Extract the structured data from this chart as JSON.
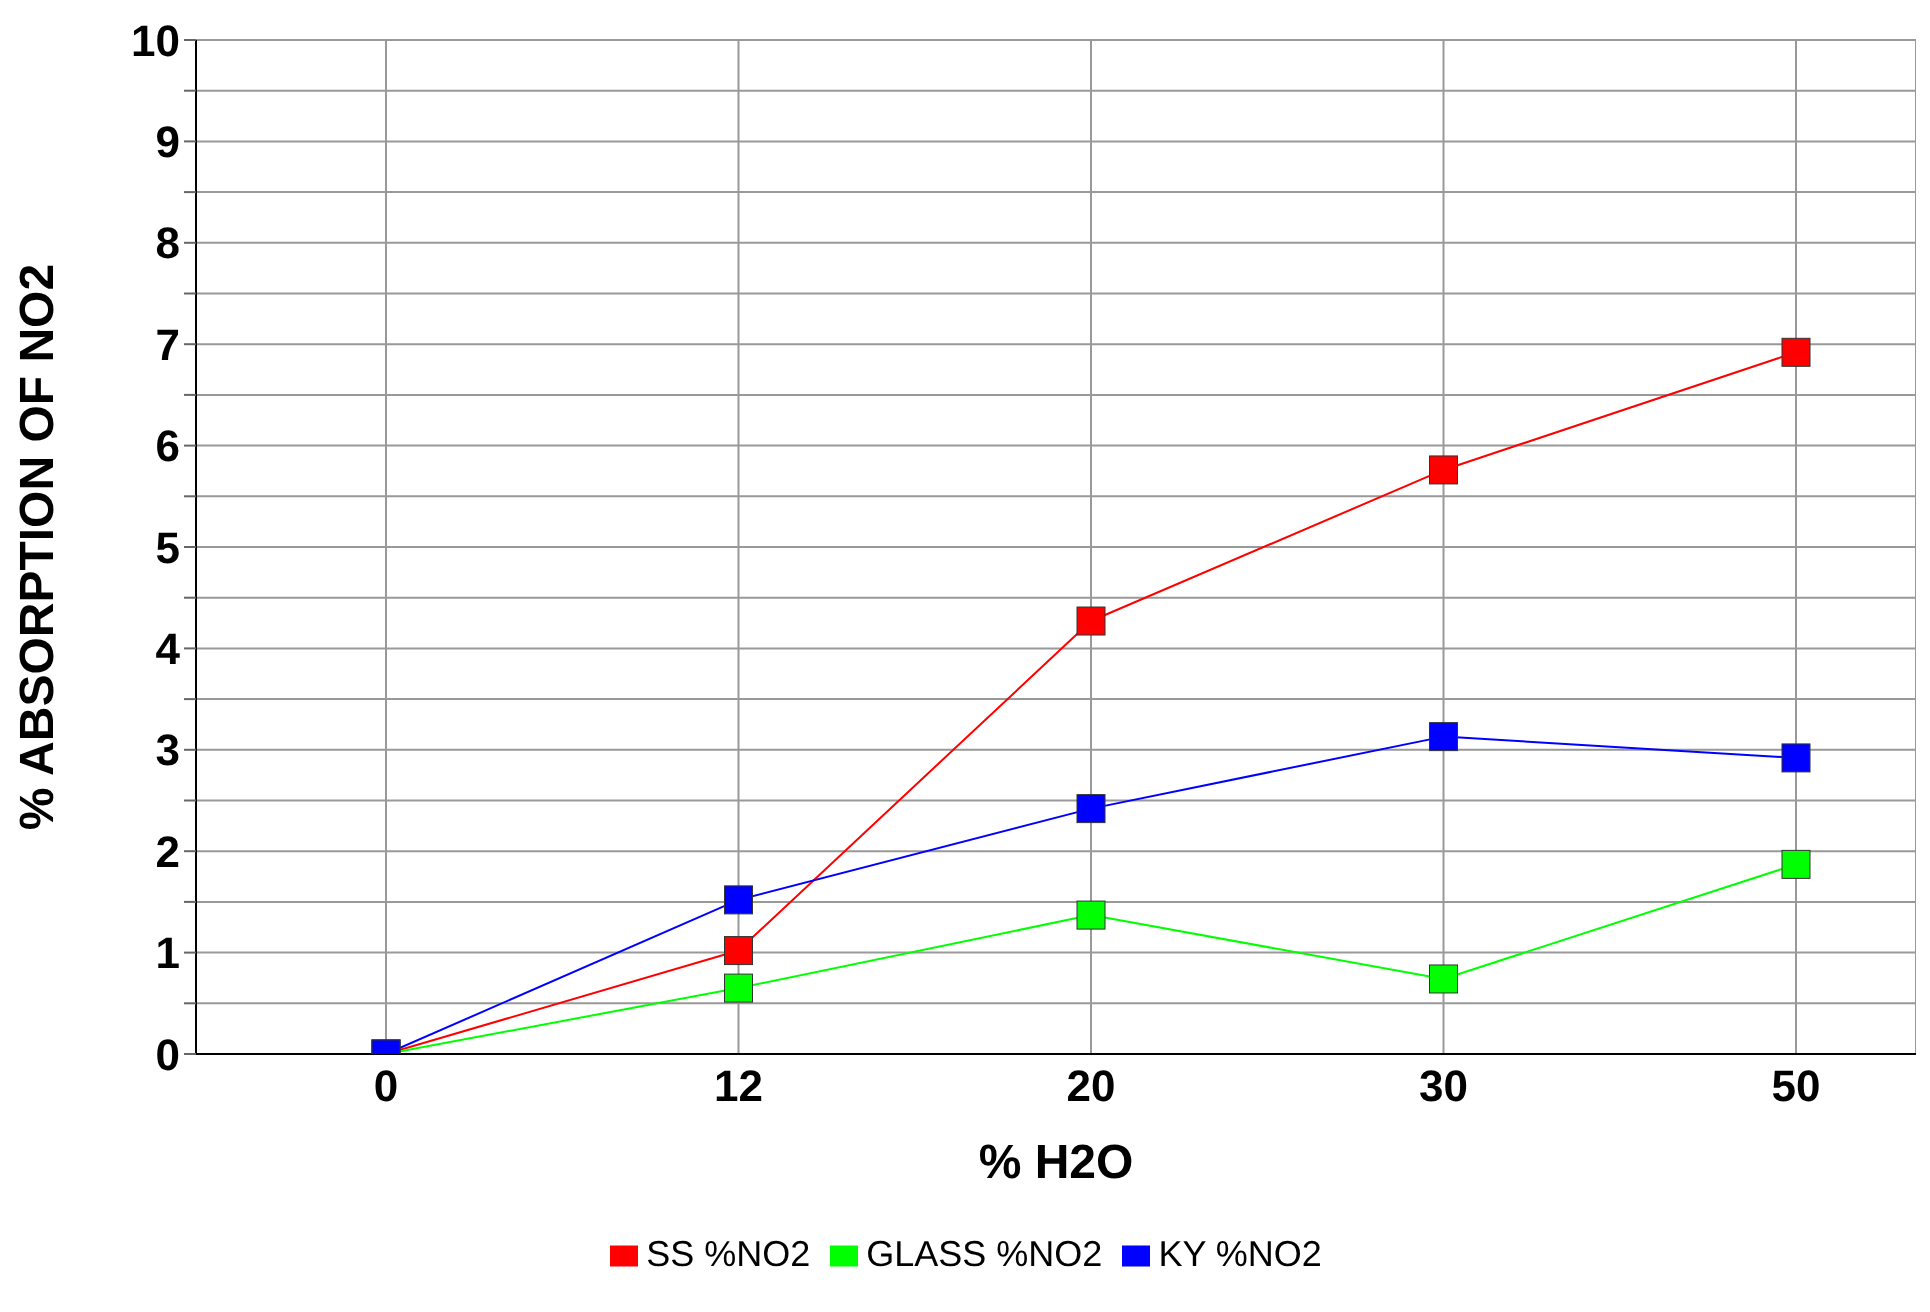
{
  "chart_data": {
    "type": "line",
    "xlabel": "% H2O",
    "ylabel": "% ABSORPTION OF NO2",
    "categories": [
      "0",
      "12",
      "20",
      "30",
      "50"
    ],
    "series": [
      {
        "name": "SS %NO2",
        "color": "#ff0000",
        "values": [
          0,
          1.02,
          4.27,
          5.76,
          6.92
        ]
      },
      {
        "name": "GLASS %NO2",
        "color": "#00ff00",
        "values": [
          0,
          0.65,
          1.37,
          0.74,
          1.87
        ]
      },
      {
        "name": "KY %NO2",
        "color": "#0000ff",
        "values": [
          0,
          1.52,
          2.42,
          3.13,
          2.92
        ]
      }
    ],
    "ylim": [
      0,
      10
    ],
    "yticks": [
      0,
      {
        "value": 0.5,
        "label": null
      },
      1,
      {
        "value": 1.5,
        "label": null
      },
      2,
      {
        "value": 2.5,
        "label": null
      },
      3,
      {
        "value": 3.5,
        "label": null
      },
      4,
      {
        "value": 4.5,
        "label": null
      },
      5,
      {
        "value": 5.5,
        "label": null
      },
      6,
      {
        "value": 6.5,
        "label": null
      },
      7,
      {
        "value": 7.5,
        "label": null
      },
      8,
      {
        "value": 8.5,
        "label": null
      },
      9,
      {
        "value": 9.5,
        "label": null
      },
      10
    ],
    "grid": true,
    "legend": "bottom",
    "marker": "square",
    "line_style": "solid"
  }
}
